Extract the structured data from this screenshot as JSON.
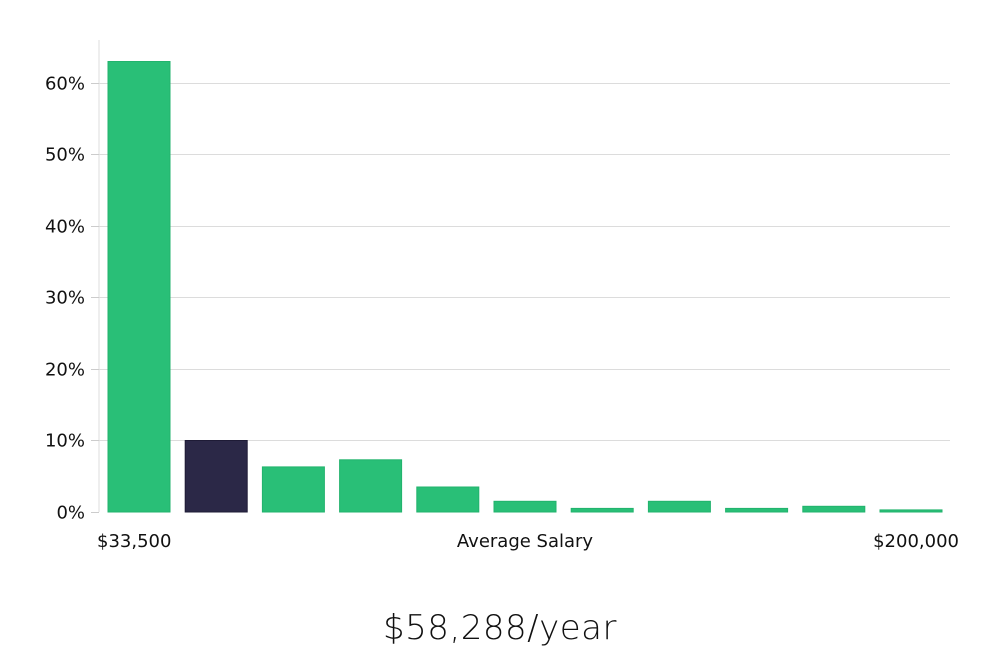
{
  "chart_data": {
    "type": "bar",
    "xlabel": "Average Salary",
    "x_range_labels": {
      "min": "$33,500",
      "max": "$200,000"
    },
    "y_ticks": [
      {
        "value": 0,
        "label": "0%"
      },
      {
        "value": 10,
        "label": "10%"
      },
      {
        "value": 20,
        "label": "20%"
      },
      {
        "value": 30,
        "label": "30%"
      },
      {
        "value": 40,
        "label": "40%"
      },
      {
        "value": 50,
        "label": "50%"
      },
      {
        "value": 60,
        "label": "60%"
      }
    ],
    "ylim": [
      0,
      66
    ],
    "values": [
      63,
      10,
      6.3,
      7.3,
      3.5,
      1.5,
      0.5,
      1.5,
      0.5,
      0.8,
      0.3
    ],
    "highlight_index": 1,
    "colors": {
      "bar": "#29bf77",
      "bar_stroke": "#22b36d",
      "highlight": "#2b2847",
      "highlight_stroke": "#1e1b36"
    },
    "grid": true
  },
  "summary": {
    "salary_text": "$58,288/year"
  }
}
